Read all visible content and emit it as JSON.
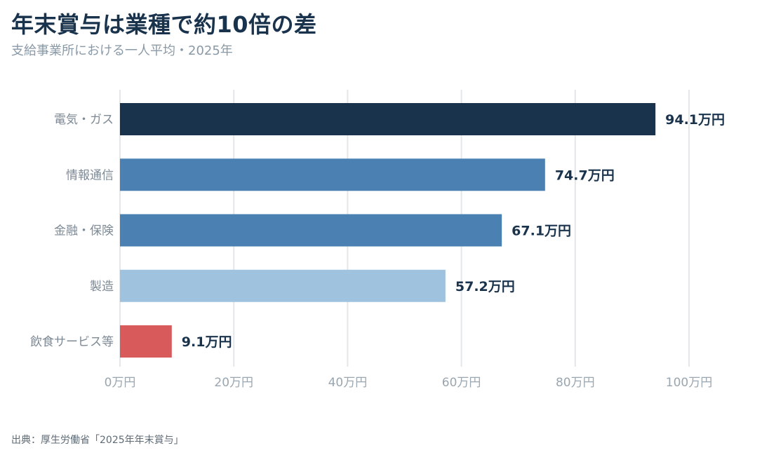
{
  "header": {
    "title": "年末賞与は業種で約10倍の差",
    "subtitle": "支給事業所における一人平均・2025年"
  },
  "footer": {
    "source": "出典：厚生労働省「2025年年末賞与」"
  },
  "chart_data": {
    "type": "bar",
    "orientation": "horizontal",
    "categories": [
      "電気・ガス",
      "情報通信",
      "金融・保険",
      "製造",
      "飲食サービス等"
    ],
    "values": [
      94.1,
      74.7,
      67.1,
      57.2,
      9.1
    ],
    "value_labels": [
      "94.1万円",
      "74.7万円",
      "67.1万円",
      "57.2万円",
      "9.1万円"
    ],
    "bar_colors": [
      "#1a334d",
      "#4a80b2",
      "#4a80b2",
      "#9fc3de",
      "#d95a5a"
    ],
    "xlim": [
      0,
      100
    ],
    "x_ticks": [
      0,
      20,
      40,
      60,
      80,
      100
    ],
    "x_tick_labels": [
      "0万円",
      "20万円",
      "40万円",
      "60万円",
      "80万円",
      "100万円"
    ],
    "grid": "vertical",
    "legend": "none"
  }
}
